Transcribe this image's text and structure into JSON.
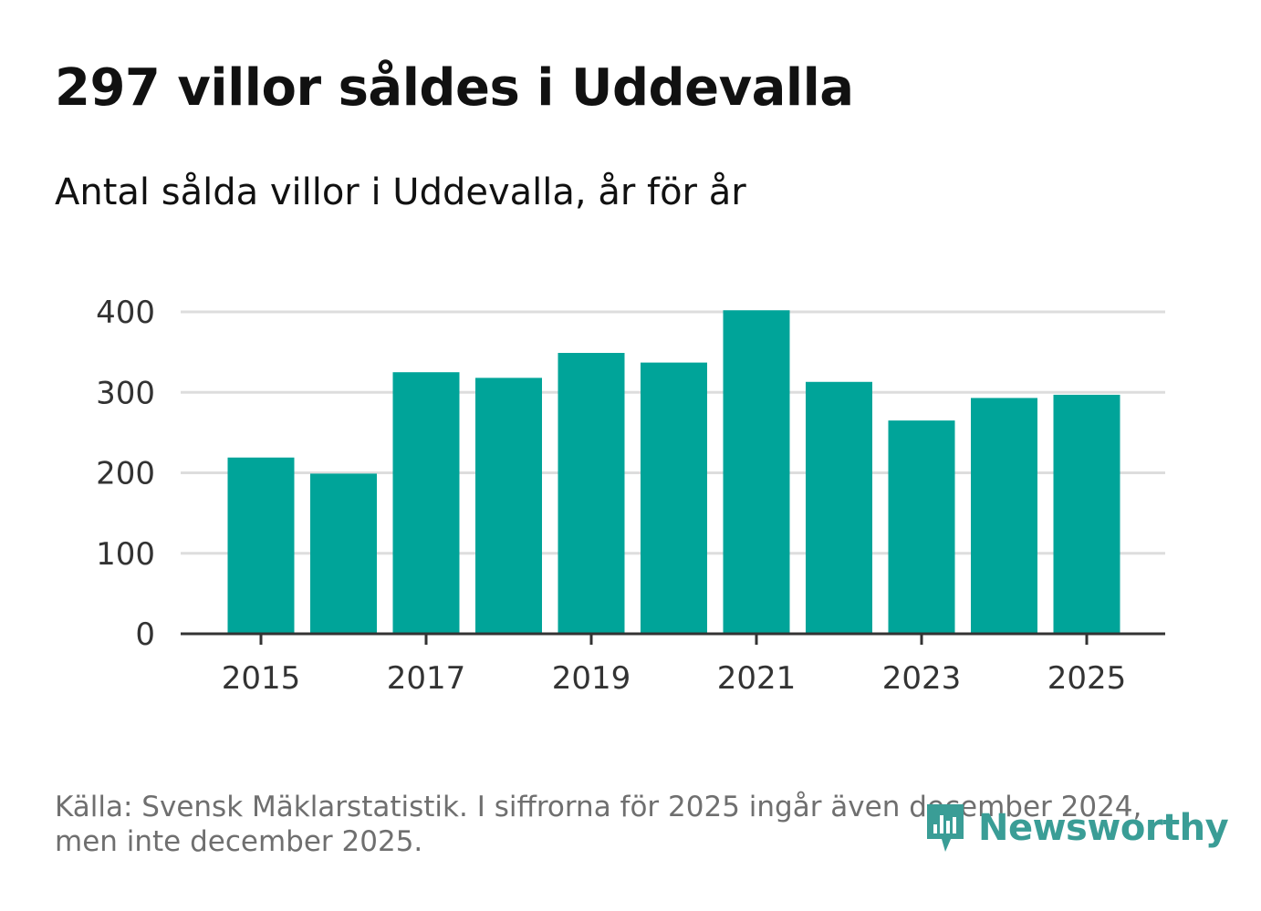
{
  "title": "297 villor såldes i Uddevalla",
  "subtitle": "Antal sålda villor i Uddevalla, år för år",
  "source": {
    "line1": "Källa: Svensk Mäklarstatistik. I siffrorna för 2025 ingår även december 2024,",
    "line2": "men inte december 2025."
  },
  "logo": {
    "text": "Newsworthy",
    "icon": "newsworthy-logo-icon"
  },
  "colors": {
    "bar": "#00a499",
    "grid": "#dddddd",
    "axis": "#333333",
    "brand": "#3a9d96"
  },
  "chart_data": {
    "type": "bar",
    "title": "297 villor såldes i Uddevalla",
    "subtitle": "Antal sålda villor i Uddevalla, år för år",
    "xlabel": "",
    "ylabel": "",
    "categories": [
      "2015",
      "2016",
      "2017",
      "2018",
      "2019",
      "2020",
      "2021",
      "2022",
      "2023",
      "2024",
      "2025"
    ],
    "values": [
      219,
      199,
      325,
      318,
      349,
      337,
      402,
      313,
      265,
      293,
      297
    ],
    "x_tick_labels": [
      "2015",
      "2017",
      "2019",
      "2021",
      "2023",
      "2025"
    ],
    "y_ticks": [
      0,
      100,
      200,
      300,
      400
    ],
    "ylim": [
      0,
      400
    ],
    "grid": true,
    "legend": "none"
  }
}
